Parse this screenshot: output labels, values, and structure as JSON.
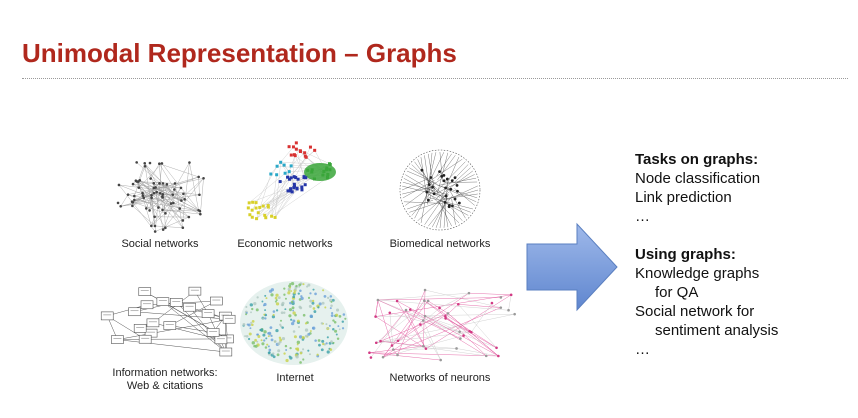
{
  "slide": {
    "title": "Unimodal Representation – Graphs"
  },
  "images": [
    {
      "caption": "Social networks"
    },
    {
      "caption": "Economic networks"
    },
    {
      "caption": "Biomedical networks"
    },
    {
      "caption_line1": "Information networks:",
      "caption_line2": "Web & citations"
    },
    {
      "caption": "Internet"
    },
    {
      "caption": "Networks of neurons"
    }
  ],
  "right_text": {
    "tasks_heading": "Tasks on graphs:",
    "tasks": [
      "Node classification",
      "Link prediction",
      "…"
    ],
    "using_heading": "Using graphs:",
    "using": [
      {
        "text": "Knowledge graphs",
        "indent": false
      },
      {
        "text": "for QA",
        "indent": true
      },
      {
        "text": "Social network for",
        "indent": false
      },
      {
        "text": "sentiment analysis",
        "indent": true
      },
      {
        "text": "…",
        "indent": false
      }
    ]
  },
  "colors": {
    "title": "#b0281d",
    "arrow_fill": "#6d93d8",
    "arrow_stroke": "#5a7fc0"
  }
}
